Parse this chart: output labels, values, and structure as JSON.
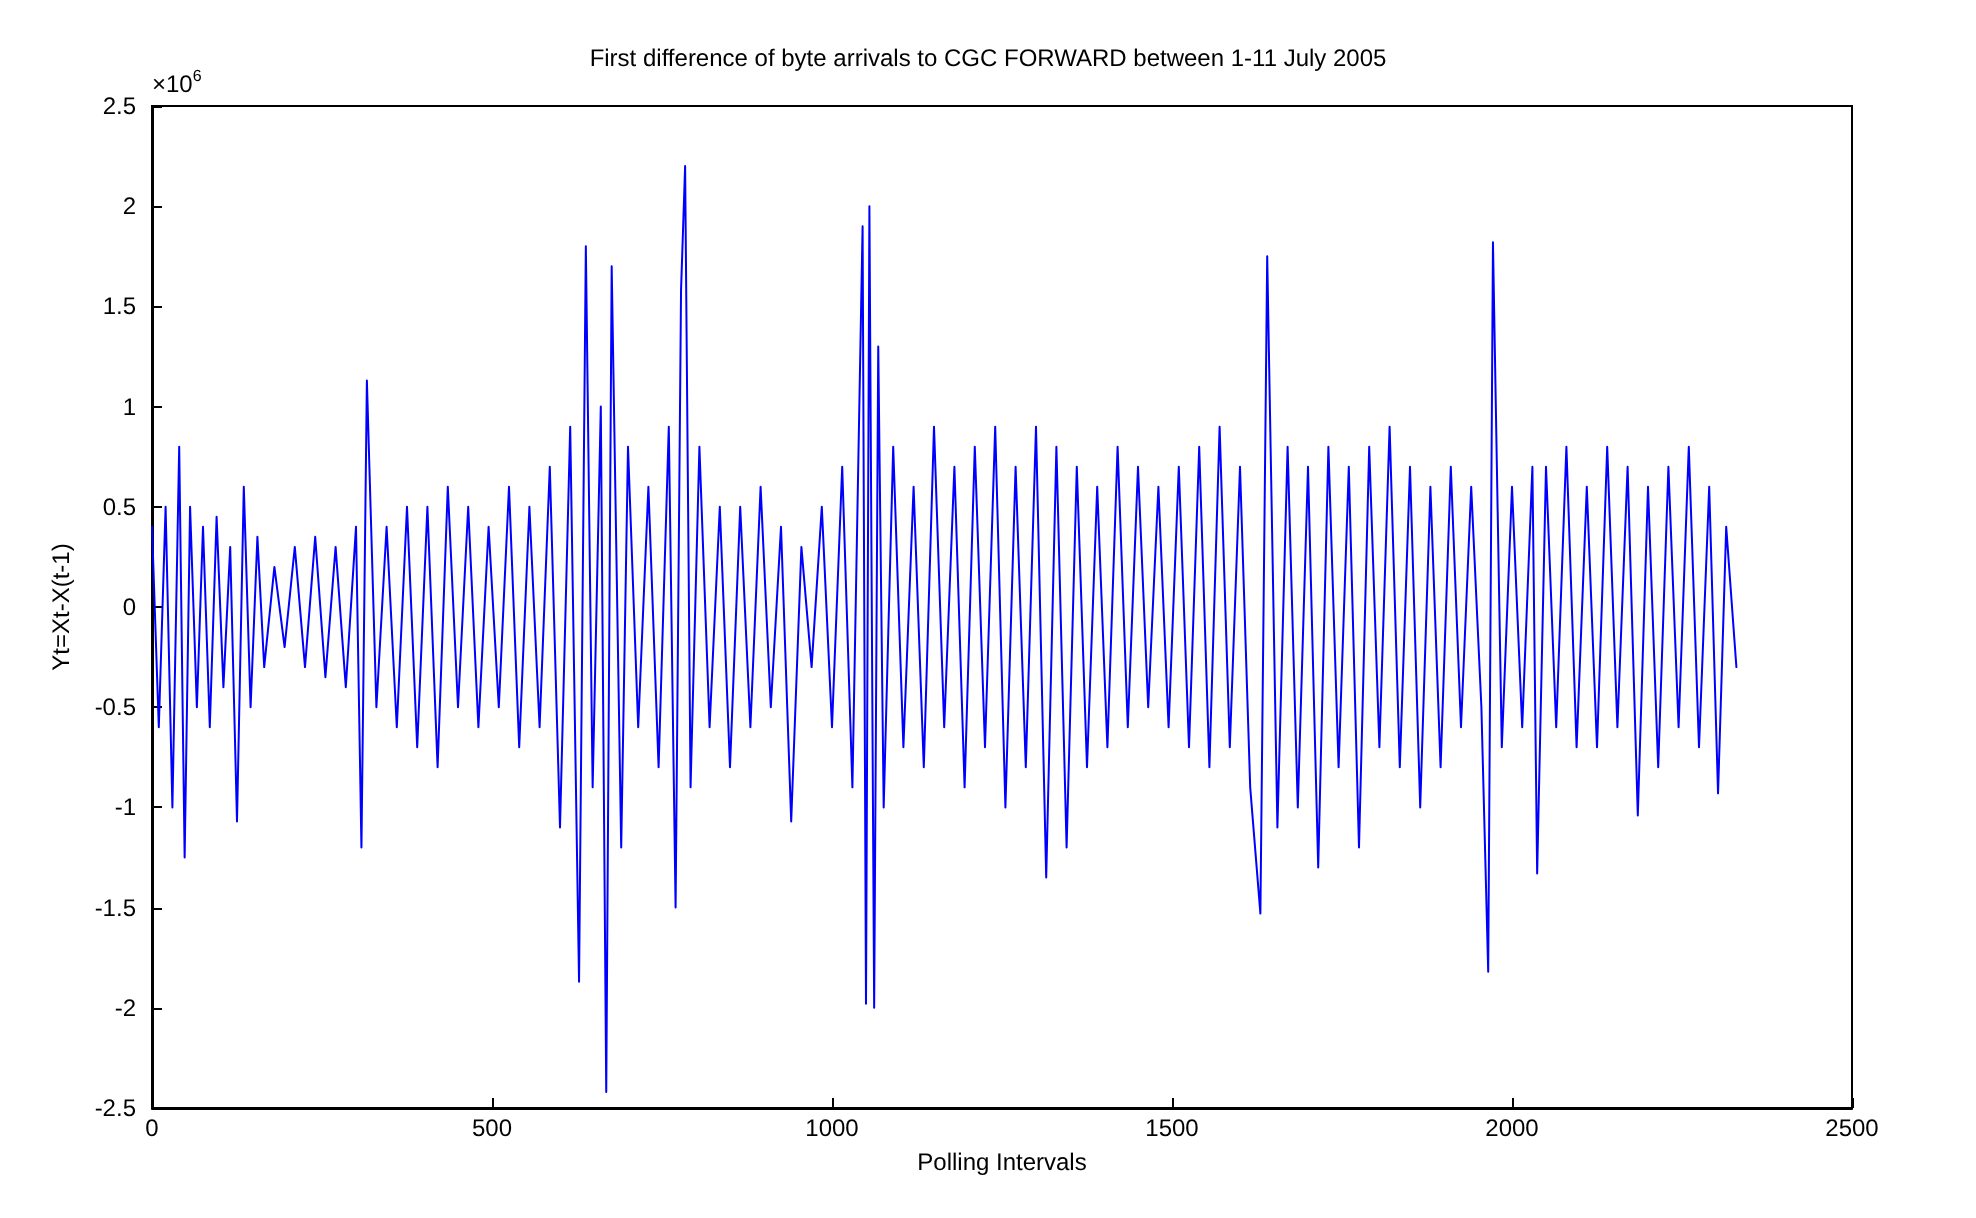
{
  "chart_data": {
    "type": "line",
    "title": "First difference of byte arrivals to CGC FORWARD between 1-11 July 2005",
    "xlabel": "Polling Intervals",
    "ylabel": "Yt=Xt-X(t-1)",
    "annotations": [
      "×10$^{6}$"
    ],
    "grid": false,
    "marker": "none",
    "line_style": "solid",
    "xlim": [
      0,
      2500
    ],
    "xticks": [
      0,
      500,
      1000,
      1500,
      2000,
      2500
    ],
    "ylim": [
      -2.5,
      2.5
    ],
    "yticks": [
      -2.5,
      -2,
      -1.5,
      -1,
      -0.5,
      0,
      0.5,
      1,
      1.5,
      2,
      2.5
    ],
    "x": [
      0,
      10,
      20,
      30,
      40,
      48,
      56,
      66,
      75,
      85,
      95,
      105,
      115,
      125,
      135,
      145,
      155,
      165,
      180,
      195,
      210,
      225,
      240,
      255,
      270,
      285,
      300,
      308,
      316,
      330,
      345,
      360,
      375,
      390,
      405,
      420,
      435,
      450,
      465,
      480,
      495,
      510,
      525,
      540,
      555,
      570,
      585,
      600,
      615,
      628,
      638,
      648,
      660,
      668,
      676,
      690,
      700,
      715,
      730,
      745,
      760,
      770,
      778,
      784,
      792,
      805,
      820,
      835,
      850,
      865,
      880,
      895,
      910,
      925,
      940,
      955,
      970,
      985,
      1000,
      1015,
      1030,
      1045,
      1050,
      1055,
      1062,
      1068,
      1076,
      1090,
      1105,
      1120,
      1135,
      1150,
      1165,
      1180,
      1195,
      1210,
      1225,
      1240,
      1255,
      1270,
      1285,
      1300,
      1315,
      1330,
      1345,
      1360,
      1375,
      1390,
      1405,
      1420,
      1435,
      1450,
      1465,
      1480,
      1495,
      1510,
      1525,
      1540,
      1555,
      1570,
      1585,
      1600,
      1615,
      1630,
      1640,
      1655,
      1670,
      1685,
      1700,
      1715,
      1730,
      1745,
      1760,
      1775,
      1790,
      1805,
      1820,
      1835,
      1850,
      1865,
      1880,
      1895,
      1910,
      1925,
      1940,
      1955,
      1965,
      1972,
      1985,
      2000,
      2015,
      2030,
      2037,
      2050,
      2065,
      2080,
      2095,
      2110,
      2125,
      2140,
      2155,
      2170,
      2185,
      2200,
      2215,
      2230,
      2245,
      2260,
      2275,
      2290,
      2303,
      2315,
      2330
    ],
    "series": [
      {
        "color": "#0000ff",
        "values": [
          0.4,
          -0.6,
          0.5,
          -1.0,
          0.8,
          -1.25,
          0.5,
          -0.5,
          0.4,
          -0.6,
          0.45,
          -0.4,
          0.3,
          -1.07,
          0.6,
          -0.5,
          0.35,
          -0.3,
          0.2,
          -0.2,
          0.3,
          -0.3,
          0.35,
          -0.35,
          0.3,
          -0.4,
          0.4,
          -1.2,
          1.13,
          -0.5,
          0.4,
          -0.6,
          0.5,
          -0.7,
          0.5,
          -0.8,
          0.6,
          -0.5,
          0.5,
          -0.6,
          0.4,
          -0.5,
          0.6,
          -0.7,
          0.5,
          -0.6,
          0.7,
          -1.1,
          0.9,
          -1.87,
          1.8,
          -0.9,
          1.0,
          -2.42,
          1.7,
          -1.2,
          0.8,
          -0.6,
          0.6,
          -0.8,
          0.9,
          -1.5,
          1.58,
          2.2,
          -0.9,
          0.8,
          -0.6,
          0.5,
          -0.8,
          0.5,
          -0.6,
          0.6,
          -0.5,
          0.4,
          -1.07,
          0.3,
          -0.3,
          0.5,
          -0.6,
          0.7,
          -0.9,
          1.9,
          -1.98,
          2.0,
          -2.0,
          1.3,
          -1.0,
          0.8,
          -0.7,
          0.6,
          -0.8,
          0.9,
          -0.6,
          0.7,
          -0.9,
          0.8,
          -0.7,
          0.9,
          -1.0,
          0.7,
          -0.8,
          0.9,
          -1.35,
          0.8,
          -1.2,
          0.7,
          -0.8,
          0.6,
          -0.7,
          0.8,
          -0.6,
          0.7,
          -0.5,
          0.6,
          -0.6,
          0.7,
          -0.7,
          0.8,
          -0.8,
          0.9,
          -0.7,
          0.7,
          -0.9,
          -1.53,
          1.75,
          -1.1,
          0.8,
          -1.0,
          0.7,
          -1.3,
          0.8,
          -0.8,
          0.7,
          -1.2,
          0.8,
          -0.7,
          0.9,
          -0.8,
          0.7,
          -1.0,
          0.6,
          -0.8,
          0.7,
          -0.6,
          0.6,
          -0.5,
          -1.82,
          1.82,
          -0.7,
          0.6,
          -0.6,
          0.7,
          -1.33,
          0.7,
          -0.6,
          0.8,
          -0.7,
          0.6,
          -0.7,
          0.8,
          -0.6,
          0.7,
          -1.04,
          0.6,
          -0.8,
          0.7,
          -0.6,
          0.8,
          -0.7,
          0.6,
          -0.93,
          0.4,
          -0.3
        ]
      }
    ]
  }
}
